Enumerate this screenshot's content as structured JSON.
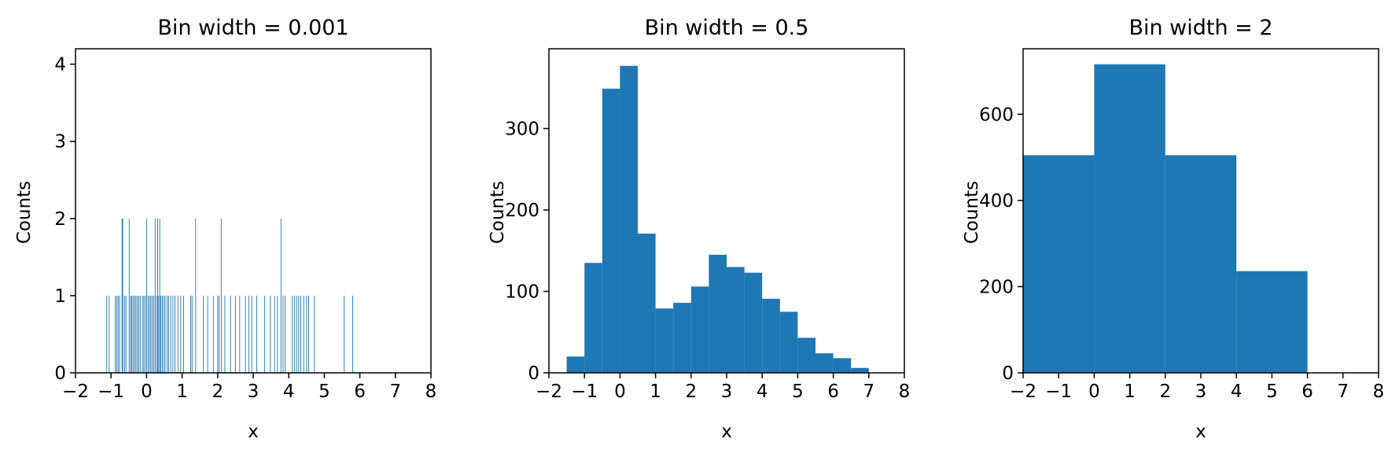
{
  "chart_data": [
    {
      "type": "bar",
      "title": "Bin width = 0.001",
      "xlabel": "x",
      "ylabel": "Counts",
      "xlim": [
        -2,
        8
      ],
      "ylim": [
        0,
        4.2
      ],
      "xticks": [
        "−2",
        "−1",
        "0",
        "1",
        "2",
        "3",
        "4",
        "5",
        "6",
        "7",
        "8"
      ],
      "yticks": [
        "0",
        "1",
        "2",
        "3",
        "4"
      ],
      "color": "#1f77b4",
      "bin_width": 0.001,
      "points": [
        {
          "x": -1.12,
          "y": 1
        },
        {
          "x": -1.05,
          "y": 1
        },
        {
          "x": -0.88,
          "y": 1
        },
        {
          "x": -0.84,
          "y": 1
        },
        {
          "x": -0.8,
          "y": 1
        },
        {
          "x": -0.76,
          "y": 1
        },
        {
          "x": -0.69,
          "y": 2
        },
        {
          "x": -0.67,
          "y": 2
        },
        {
          "x": -0.62,
          "y": 1
        },
        {
          "x": -0.58,
          "y": 1
        },
        {
          "x": -0.49,
          "y": 2
        },
        {
          "x": -0.45,
          "y": 1
        },
        {
          "x": -0.42,
          "y": 1
        },
        {
          "x": -0.38,
          "y": 1
        },
        {
          "x": -0.34,
          "y": 1
        },
        {
          "x": -0.3,
          "y": 1
        },
        {
          "x": -0.26,
          "y": 1
        },
        {
          "x": -0.22,
          "y": 1
        },
        {
          "x": -0.18,
          "y": 1
        },
        {
          "x": -0.12,
          "y": 1
        },
        {
          "x": -0.08,
          "y": 1
        },
        {
          "x": -0.04,
          "y": 1
        },
        {
          "x": 0.0,
          "y": 2
        },
        {
          "x": 0.04,
          "y": 1
        },
        {
          "x": 0.08,
          "y": 1
        },
        {
          "x": 0.12,
          "y": 1
        },
        {
          "x": 0.16,
          "y": 1
        },
        {
          "x": 0.2,
          "y": 1
        },
        {
          "x": 0.24,
          "y": 2
        },
        {
          "x": 0.28,
          "y": 1
        },
        {
          "x": 0.31,
          "y": 2
        },
        {
          "x": 0.34,
          "y": 1
        },
        {
          "x": 0.37,
          "y": 2
        },
        {
          "x": 0.4,
          "y": 1
        },
        {
          "x": 0.44,
          "y": 1
        },
        {
          "x": 0.48,
          "y": 1
        },
        {
          "x": 0.52,
          "y": 1
        },
        {
          "x": 0.58,
          "y": 1
        },
        {
          "x": 0.62,
          "y": 1
        },
        {
          "x": 0.68,
          "y": 1
        },
        {
          "x": 0.74,
          "y": 1
        },
        {
          "x": 0.8,
          "y": 1
        },
        {
          "x": 0.88,
          "y": 1
        },
        {
          "x": 0.96,
          "y": 1
        },
        {
          "x": 1.04,
          "y": 1
        },
        {
          "x": 1.24,
          "y": 1
        },
        {
          "x": 1.28,
          "y": 1
        },
        {
          "x": 1.38,
          "y": 2
        },
        {
          "x": 1.6,
          "y": 1
        },
        {
          "x": 1.72,
          "y": 1
        },
        {
          "x": 1.88,
          "y": 1
        },
        {
          "x": 2.0,
          "y": 1
        },
        {
          "x": 2.04,
          "y": 1
        },
        {
          "x": 2.1,
          "y": 2
        },
        {
          "x": 2.2,
          "y": 1
        },
        {
          "x": 2.36,
          "y": 1
        },
        {
          "x": 2.5,
          "y": 1
        },
        {
          "x": 2.62,
          "y": 1
        },
        {
          "x": 2.78,
          "y": 1
        },
        {
          "x": 2.88,
          "y": 1
        },
        {
          "x": 2.96,
          "y": 1
        },
        {
          "x": 3.1,
          "y": 1
        },
        {
          "x": 3.32,
          "y": 1
        },
        {
          "x": 3.48,
          "y": 1
        },
        {
          "x": 3.6,
          "y": 1
        },
        {
          "x": 3.68,
          "y": 1
        },
        {
          "x": 3.78,
          "y": 2
        },
        {
          "x": 3.84,
          "y": 1
        },
        {
          "x": 3.9,
          "y": 1
        },
        {
          "x": 4.1,
          "y": 1
        },
        {
          "x": 4.16,
          "y": 1
        },
        {
          "x": 4.22,
          "y": 1
        },
        {
          "x": 4.28,
          "y": 1
        },
        {
          "x": 4.34,
          "y": 1
        },
        {
          "x": 4.42,
          "y": 1
        },
        {
          "x": 4.5,
          "y": 1
        },
        {
          "x": 4.56,
          "y": 1
        },
        {
          "x": 4.72,
          "y": 1
        },
        {
          "x": 5.56,
          "y": 1
        },
        {
          "x": 5.8,
          "y": 1
        }
      ]
    },
    {
      "type": "bar",
      "title": "Bin width = 0.5",
      "xlabel": "x",
      "ylabel": "Counts",
      "xlim": [
        -2,
        8
      ],
      "ylim": [
        0,
        398
      ],
      "xticks": [
        "−2",
        "−1",
        "0",
        "1",
        "2",
        "3",
        "4",
        "5",
        "6",
        "7",
        "8"
      ],
      "yticks": [
        "0",
        "100",
        "200",
        "300"
      ],
      "color": "#1f77b4",
      "bin_width": 0.5,
      "bins": [
        {
          "x0": -1.5,
          "x1": -1.0,
          "value": 20
        },
        {
          "x0": -1.0,
          "x1": -0.5,
          "value": 135
        },
        {
          "x0": -0.5,
          "x1": 0.0,
          "value": 349
        },
        {
          "x0": 0.0,
          "x1": 0.5,
          "value": 377
        },
        {
          "x0": 0.5,
          "x1": 1.0,
          "value": 171
        },
        {
          "x0": 1.0,
          "x1": 1.5,
          "value": 79
        },
        {
          "x0": 1.5,
          "x1": 2.0,
          "value": 86
        },
        {
          "x0": 2.0,
          "x1": 2.5,
          "value": 106
        },
        {
          "x0": 2.5,
          "x1": 3.0,
          "value": 145
        },
        {
          "x0": 3.0,
          "x1": 3.5,
          "value": 130
        },
        {
          "x0": 3.5,
          "x1": 4.0,
          "value": 123
        },
        {
          "x0": 4.0,
          "x1": 4.5,
          "value": 91
        },
        {
          "x0": 4.5,
          "x1": 5.0,
          "value": 75
        },
        {
          "x0": 5.0,
          "x1": 5.5,
          "value": 43
        },
        {
          "x0": 5.5,
          "x1": 6.0,
          "value": 24
        },
        {
          "x0": 6.0,
          "x1": 6.5,
          "value": 18
        },
        {
          "x0": 6.5,
          "x1": 7.0,
          "value": 6
        }
      ]
    },
    {
      "type": "bar",
      "title": "Bin width = 2",
      "xlabel": "x",
      "ylabel": "Counts",
      "xlim": [
        -2,
        8
      ],
      "ylim": [
        0,
        752
      ],
      "xticks": [
        "−2",
        "−1",
        "0",
        "1",
        "2",
        "3",
        "4",
        "5",
        "6",
        "7",
        "8"
      ],
      "yticks": [
        "0",
        "200",
        "400",
        "600"
      ],
      "color": "#1f77b4",
      "bin_width": 2,
      "bins": [
        {
          "x0": -2,
          "x1": 0,
          "value": 505
        },
        {
          "x0": 0,
          "x1": 2,
          "value": 716
        },
        {
          "x0": 2,
          "x1": 4,
          "value": 505
        },
        {
          "x0": 4,
          "x1": 6,
          "value": 236
        }
      ]
    }
  ]
}
